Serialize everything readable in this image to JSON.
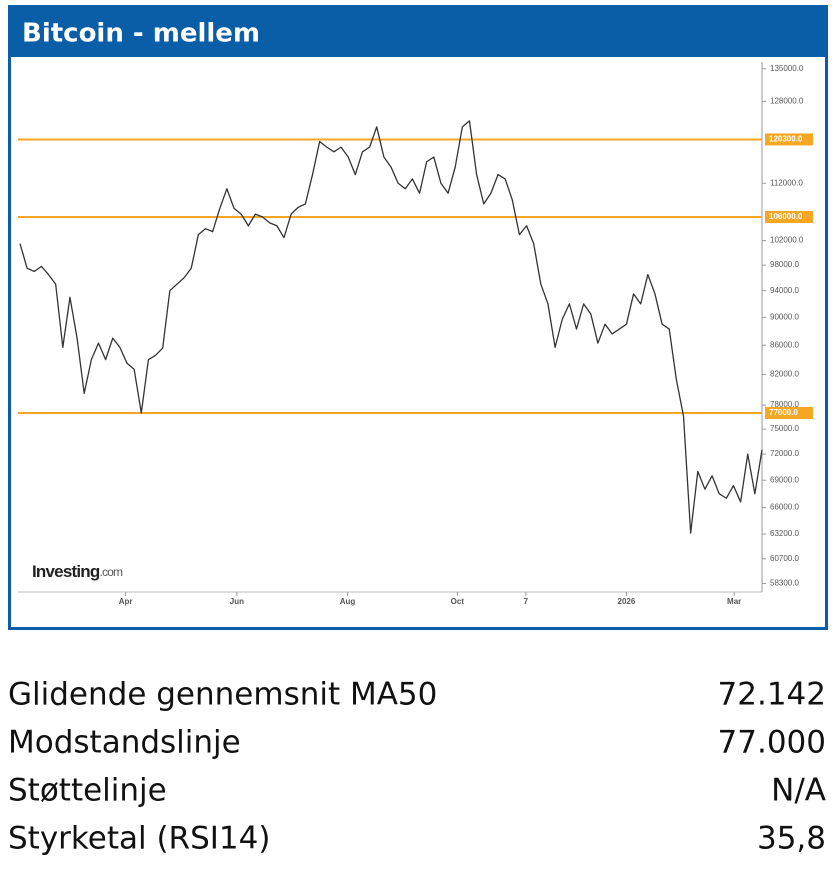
{
  "chart_data": {
    "type": "line",
    "title": "Bitcoin - mellem",
    "logo": "Investing",
    "logo_suffix": ".com",
    "log_scale": true,
    "line_color": "#333333",
    "level_color": "#f5a623",
    "series": [
      {
        "name": "Bitcoin",
        "color": "#333333",
        "values": [
          101500,
          97500,
          97000,
          97800,
          96500,
          95000,
          85700,
          93000,
          87000,
          79500,
          84000,
          86300,
          84000,
          87000,
          85700,
          83500,
          82700,
          77000,
          84000,
          84600,
          85600,
          94000,
          95000,
          96000,
          97500,
          103000,
          104000,
          103500,
          107500,
          111000,
          107500,
          106500,
          104500,
          106500,
          106000,
          105000,
          104500,
          102500,
          106500,
          107700,
          108300,
          113600,
          119900,
          118800,
          117900,
          118800,
          116900,
          113600,
          117900,
          118800,
          122800,
          116900,
          115000,
          112000,
          111000,
          112800,
          110200,
          116000,
          116900,
          112000,
          110200,
          115000,
          122800,
          124000,
          113600,
          108300,
          110200,
          113600,
          112800,
          109000,
          103000,
          104500,
          101500,
          95000,
          92000,
          85700,
          89700,
          92000,
          88300,
          92000,
          90500,
          86300,
          89000,
          87600,
          88300,
          89000,
          93500,
          92000,
          96500,
          93500,
          89000,
          88300,
          81300,
          76600,
          63300,
          70000,
          68000,
          69500,
          67500,
          67000,
          68400,
          66600,
          72000,
          67500,
          72500
        ]
      }
    ],
    "levels": [
      {
        "value": 120300,
        "label": "120300.0"
      },
      {
        "value": 106000,
        "label": "106000.0"
      },
      {
        "value": 77000,
        "label": "77000.0"
      }
    ],
    "xlim": [
      0,
      104
    ],
    "xticks": [
      {
        "value": 14.8,
        "label": "Apr"
      },
      {
        "value": 30.4,
        "label": "Jun"
      },
      {
        "value": 45.9,
        "label": "Aug"
      },
      {
        "value": 61.3,
        "label": "Oct"
      },
      {
        "value": 70.9,
        "label": "7"
      },
      {
        "value": 85,
        "label": "2026"
      },
      {
        "value": 100.1,
        "label": "Mar"
      }
    ],
    "ylim": [
      57500,
      136500
    ],
    "yticks": [
      {
        "value": 135000,
        "label": "135000.0"
      },
      {
        "value": 128000,
        "label": "128000.0"
      },
      {
        "value": 112000,
        "label": "112000.0"
      },
      {
        "value": 102000,
        "label": "102000.0"
      },
      {
        "value": 98000,
        "label": "98000.0"
      },
      {
        "value": 94000,
        "label": "94000.0"
      },
      {
        "value": 90000,
        "label": "90000.0"
      },
      {
        "value": 86000,
        "label": "86000.0"
      },
      {
        "value": 82000,
        "label": "82000.0"
      },
      {
        "value": 78000,
        "label": "78000.0"
      },
      {
        "value": 75000,
        "label": "75000.0"
      },
      {
        "value": 72000,
        "label": "72000.0"
      },
      {
        "value": 69000,
        "label": "69000.0"
      },
      {
        "value": 66000,
        "label": "66000.0"
      },
      {
        "value": 63200,
        "label": "63200.0"
      },
      {
        "value": 60700,
        "label": "60700.0"
      },
      {
        "value": 58300,
        "label": "58300.0"
      }
    ]
  },
  "table": {
    "rows": [
      [
        "Glidende gennemsnit MA50",
        "72.142"
      ],
      [
        "Modstandslinje",
        "77.000"
      ],
      [
        "Støttelinje",
        "N/A"
      ],
      [
        "Styrketal (RSI14)",
        "35,8"
      ]
    ]
  }
}
